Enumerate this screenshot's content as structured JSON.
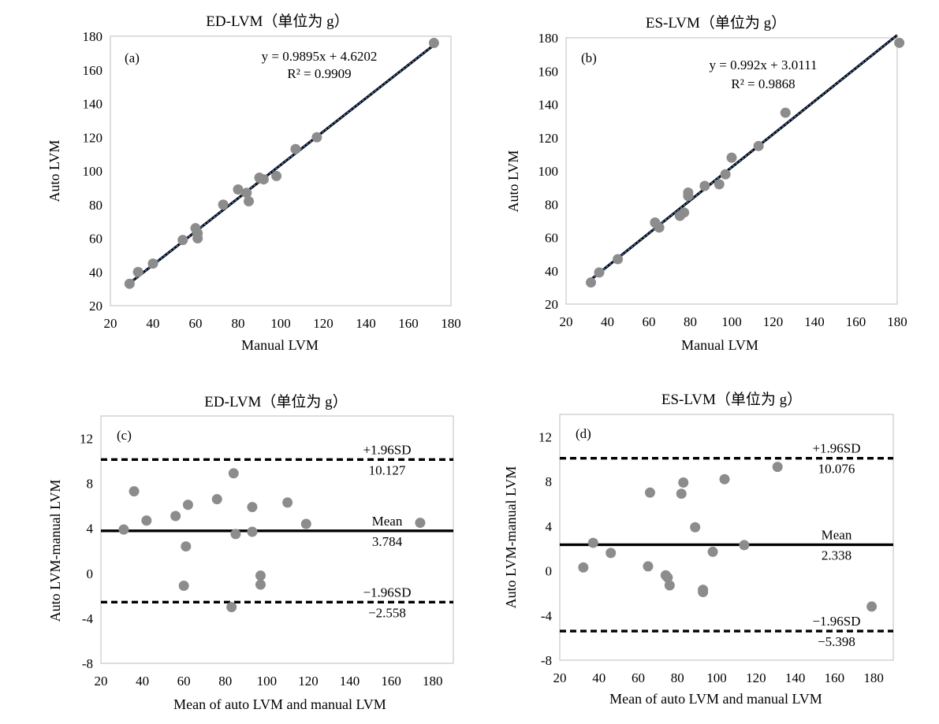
{
  "chart_data": [
    {
      "panel": "(a)",
      "type": "scatter",
      "title": "ED-LVM（单位为 g）",
      "xlabel": "Manual LVM",
      "ylabel": "Auto LVM",
      "xlim": [
        20,
        180
      ],
      "ylim": [
        20,
        180
      ],
      "xticks": [
        20,
        40,
        60,
        80,
        100,
        120,
        140,
        160,
        180
      ],
      "yticks": [
        20,
        40,
        60,
        80,
        100,
        120,
        140,
        160,
        180
      ],
      "points": [
        [
          29,
          33
        ],
        [
          33,
          40
        ],
        [
          40,
          45
        ],
        [
          54,
          59
        ],
        [
          60,
          66
        ],
        [
          61,
          60
        ],
        [
          61,
          63
        ],
        [
          73,
          80
        ],
        [
          80,
          89
        ],
        [
          84,
          87
        ],
        [
          85,
          82
        ],
        [
          90,
          96
        ],
        [
          92,
          95
        ],
        [
          98,
          97
        ],
        [
          107,
          113
        ],
        [
          117,
          120
        ],
        [
          172,
          176
        ]
      ],
      "trendline": {
        "slope": 0.9895,
        "intercept": 4.6202,
        "x_range": [
          29,
          172
        ]
      },
      "equation": "y = 0.9895x + 4.6202",
      "r2": "R² = 0.9909",
      "point_color": "#8c8c8c",
      "line_color": "#1a2a5c"
    },
    {
      "panel": "(b)",
      "type": "scatter",
      "title": "ES-LVM（单位为 g）",
      "xlabel": "Manual LVM",
      "ylabel": "Auto LVM",
      "xlim": [
        20,
        180
      ],
      "ylim": [
        20,
        180
      ],
      "xticks": [
        20,
        40,
        60,
        80,
        100,
        120,
        140,
        160,
        180
      ],
      "yticks": [
        20,
        40,
        60,
        80,
        100,
        120,
        140,
        160,
        180
      ],
      "points": [
        [
          32,
          33
        ],
        [
          36,
          39
        ],
        [
          45,
          47
        ],
        [
          63,
          69
        ],
        [
          65,
          66
        ],
        [
          75,
          73
        ],
        [
          77,
          75
        ],
        [
          79,
          85
        ],
        [
          79,
          87
        ],
        [
          87,
          91
        ],
        [
          94,
          92
        ],
        [
          97,
          98
        ],
        [
          100,
          108
        ],
        [
          113,
          115
        ],
        [
          126,
          135
        ],
        [
          181,
          177
        ]
      ],
      "trendline": {
        "slope": 0.992,
        "intercept": 3.0111,
        "x_range": [
          32,
          180
        ]
      },
      "equation": "y = 0.992x + 3.0111",
      "r2": "R² = 0.9868",
      "point_color": "#8c8c8c",
      "line_color": "#1a2a5c"
    },
    {
      "panel": "(c)",
      "type": "scatter",
      "title": "ED-LVM（单位为 g）",
      "xlabel": "Mean of auto LVM and manual LVM",
      "ylabel": "Auto LVM-manual LVM",
      "xlim": [
        20,
        190
      ],
      "ylim": [
        -8,
        14
      ],
      "xticks": [
        20,
        40,
        60,
        80,
        100,
        120,
        140,
        160,
        180
      ],
      "yticks": [
        -8,
        -4,
        0,
        4,
        8,
        12
      ],
      "points": [
        [
          31,
          3.9
        ],
        [
          36,
          7.3
        ],
        [
          42,
          4.7
        ],
        [
          56,
          5.1
        ],
        [
          60,
          -1.1
        ],
        [
          61,
          2.4
        ],
        [
          62,
          6.1
        ],
        [
          76,
          6.6
        ],
        [
          83,
          -3.0
        ],
        [
          84,
          8.9
        ],
        [
          85,
          3.5
        ],
        [
          93,
          5.9
        ],
        [
          93,
          3.7
        ],
        [
          97,
          -0.2
        ],
        [
          97,
          -1.0
        ],
        [
          110,
          6.3
        ],
        [
          119,
          4.4
        ],
        [
          174,
          4.5
        ]
      ],
      "reference_lines": {
        "upper": {
          "label": "+1.96SD",
          "value_label": "10.127",
          "y": 10.127
        },
        "mean": {
          "label": "Mean",
          "value_label": "3.784",
          "y": 3.784
        },
        "lower": {
          "label": "−1.96SD",
          "value_label": "−2.558",
          "y": -2.558
        }
      },
      "point_color": "#8c8c8c"
    },
    {
      "panel": "(d)",
      "type": "scatter",
      "title": "ES-LVM（单位为 g）",
      "xlabel": "Mean of auto LVM and manual LVM",
      "ylabel": "Auto LVM-manual LVM",
      "xlim": [
        20,
        190
      ],
      "ylim": [
        -8,
        14
      ],
      "xticks": [
        20,
        40,
        60,
        80,
        100,
        120,
        140,
        160,
        180
      ],
      "yticks": [
        -8,
        -4,
        0,
        4,
        8,
        12
      ],
      "points": [
        [
          32,
          0.3
        ],
        [
          37,
          2.5
        ],
        [
          46,
          1.6
        ],
        [
          65,
          0.4
        ],
        [
          66,
          7.0
        ],
        [
          74,
          -0.4
        ],
        [
          75,
          -0.6
        ],
        [
          76,
          -1.3
        ],
        [
          82,
          6.9
        ],
        [
          83,
          7.9
        ],
        [
          89,
          3.9
        ],
        [
          93,
          -1.9
        ],
        [
          93,
          -1.7
        ],
        [
          98,
          1.7
        ],
        [
          104,
          8.2
        ],
        [
          114,
          2.3
        ],
        [
          131,
          9.3
        ],
        [
          179,
          -3.2
        ]
      ],
      "reference_lines": {
        "upper": {
          "label": "+1.96SD",
          "value_label": "10.076",
          "y": 10.076
        },
        "mean": {
          "label": "Mean",
          "value_label": "2.338",
          "y": 2.338
        },
        "lower": {
          "label": "−1.96SD",
          "value_label": "−5.398",
          "y": -5.398
        }
      },
      "point_color": "#8c8c8c"
    }
  ]
}
